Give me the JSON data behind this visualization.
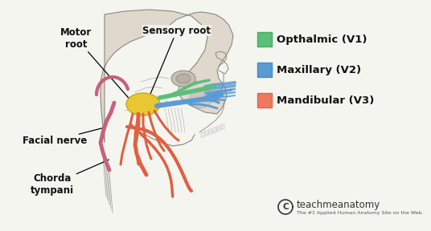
{
  "bg_color": "#f5f5f0",
  "legend_items": [
    {
      "label": "Opthalmic (V1)",
      "color": "#5dbe7a",
      "ec": "#4aaa66"
    },
    {
      "label": "Maxillary (V2)",
      "color": "#5b9bd5",
      "ec": "#4a88c2"
    },
    {
      "label": "Mandibular (V3)",
      "color": "#f07860",
      "ec": "#dd6650"
    }
  ],
  "copyright_text": "teachmeanatomy",
  "copyright_sub": "The #1 Applied Human Anatomy Site on the Web.",
  "nerve_yellow": "#e8c832",
  "nerve_green": "#5dbe7a",
  "nerve_blue": "#5b9bd5",
  "nerve_orange": "#e06040",
  "nerve_pink": "#c8607a",
  "head_color": "#d8cfc0",
  "skull_line": "#888880",
  "annotation_fontsize": 8.5,
  "legend_fontsize": 9.5
}
